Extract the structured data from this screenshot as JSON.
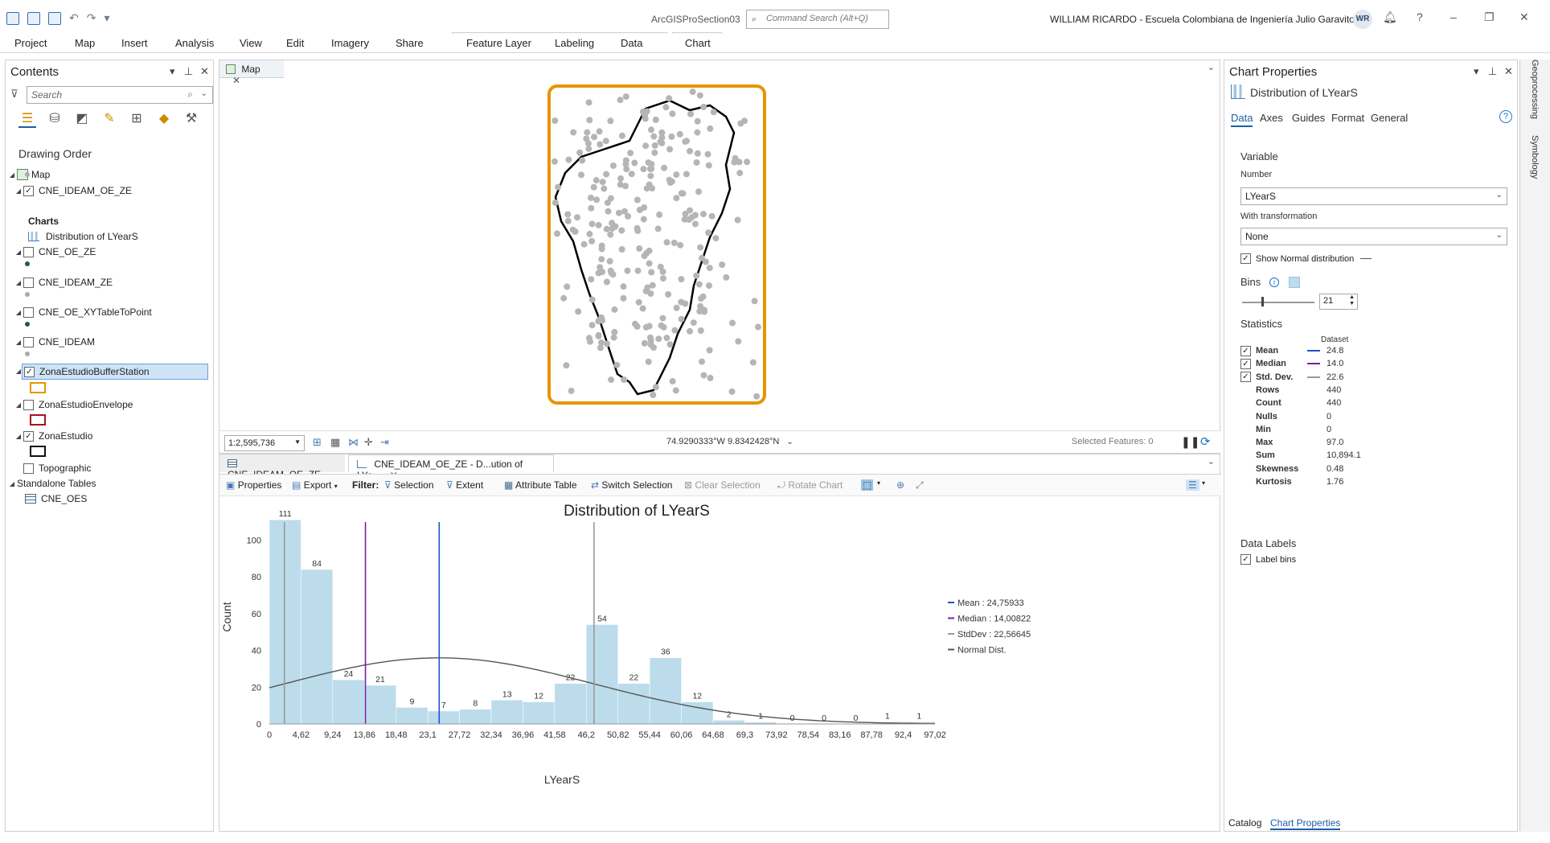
{
  "titlebar": {
    "project_name": "ArcGISProSection03",
    "command_search_placeholder": "Command Search (Alt+Q)",
    "user_name": "WILLIAM RICARDO  - Escuela Colombiana de Ingeniería Julio Garavito",
    "avatar_initials": "WR",
    "help_label": "?"
  },
  "ribbon": {
    "tabs": [
      "Project",
      "Map",
      "Insert",
      "Analysis",
      "View",
      "Edit",
      "Imagery",
      "Share",
      "Feature Layer",
      "Labeling",
      "Data",
      "Chart"
    ]
  },
  "contents": {
    "title": "Contents",
    "search_placeholder": "Search",
    "drawing_order": "Drawing Order",
    "map_label": "Map",
    "layers": [
      {
        "name": "CNE_IDEAM_OE_ZE",
        "checked": true
      },
      {
        "name": "CNE_OE_ZE",
        "checked": false
      },
      {
        "name": "CNE_IDEAM_ZE",
        "checked": false
      },
      {
        "name": "CNE_OE_XYTableToPoint",
        "checked": false
      },
      {
        "name": "CNE_IDEAM",
        "checked": false
      },
      {
        "name": "ZonaEstudioBufferStation",
        "checked": true
      },
      {
        "name": "ZonaEstudioEnvelope",
        "checked": false
      },
      {
        "name": "ZonaEstudio",
        "checked": true
      },
      {
        "name": "Topographic",
        "checked": false
      }
    ],
    "charts_header": "Charts",
    "chart_item": "Distribution of LYearS",
    "standalone_header": "Standalone Tables",
    "standalone_item": "CNE_OES",
    "check_mark": "✓"
  },
  "map_view": {
    "tab_label": "Map",
    "scale": "1:2,595,736",
    "coordinates": "74.9290333°W 9.8342428°N",
    "selected_features": "Selected Features: 0"
  },
  "chart_view": {
    "tabs": [
      "CNE_IDEAM_OE_ZE",
      "CNE_IDEAM_OE_ZE - D...ution of LYe..."
    ],
    "toolbar": {
      "properties": "Properties",
      "export": "Export",
      "filter": "Filter:",
      "selection": "Selection",
      "extent": "Extent",
      "attribute_table": "Attribute Table",
      "switch_selection": "Switch Selection",
      "clear_selection": "Clear Selection",
      "rotate_chart": "Rotate Chart"
    }
  },
  "chart_data": {
    "type": "bar",
    "title": "Distribution of LYearS",
    "xlabel": "LYearS",
    "ylabel": "Count",
    "bin_edges": [
      0,
      4.62,
      9.24,
      13.86,
      18.48,
      23.1,
      27.72,
      32.34,
      36.96,
      41.58,
      46.2,
      50.82,
      55.44,
      60.06,
      64.68,
      69.3,
      73.92,
      78.54,
      83.16,
      87.78,
      92.4,
      97.02
    ],
    "x_tick_labels": [
      "0",
      "4,62",
      "9,24",
      "13,86",
      "18,48",
      "23,1",
      "27,72",
      "32,34",
      "36,96",
      "41,58",
      "46,2",
      "50,82",
      "55,44",
      "60,06",
      "64,68",
      "69,3",
      "73,92",
      "78,54",
      "83,16",
      "87,78",
      "92,4",
      "97,02"
    ],
    "values": [
      111,
      84,
      24,
      21,
      9,
      7,
      8,
      13,
      12,
      22,
      54,
      22,
      36,
      12,
      2,
      1,
      0,
      0,
      0,
      1,
      1
    ],
    "ylim": [
      0,
      115
    ],
    "y_ticks": [
      0,
      20,
      40,
      60,
      80,
      100
    ],
    "mean": 24.75933,
    "median": 14.00822,
    "stddev": 22.56645,
    "legend": [
      {
        "label": "Mean : 24,75933",
        "color": "#1f4fd6"
      },
      {
        "label": "Median : 14,00822",
        "color": "#7a1fa2"
      },
      {
        "label": "StdDev : 22,56645",
        "color": "#999999"
      },
      {
        "label": "Normal Dist.",
        "color": "#555555"
      }
    ],
    "bar_color": "#bcdcec",
    "grid": false,
    "legend_position": "right"
  },
  "chart_properties": {
    "title": "Chart Properties",
    "chart_name": "Distribution of LYearS",
    "tabs": [
      "Data",
      "Axes",
      "Guides",
      "Format",
      "General"
    ],
    "variable_header": "Variable",
    "number_label": "Number",
    "number_value": "LYearS",
    "transformation_label": "With transformation",
    "transformation_value": "None",
    "show_normal": "Show Normal distribution",
    "bins_label": "Bins",
    "bins_value": "21",
    "statistics_header": "Statistics",
    "dataset_label": "Dataset",
    "stats": [
      {
        "name": "Mean",
        "value": "24.8",
        "checkbox": true,
        "color": "#1f4fd6"
      },
      {
        "name": "Median",
        "value": "14.0",
        "checkbox": true,
        "color": "#7a1fa2"
      },
      {
        "name": "Std. Dev.",
        "value": "22.6",
        "checkbox": true,
        "color": "#999999"
      },
      {
        "name": "Rows",
        "value": "440"
      },
      {
        "name": "Count",
        "value": "440"
      },
      {
        "name": "Nulls",
        "value": "0"
      },
      {
        "name": "Min",
        "value": "0"
      },
      {
        "name": "Max",
        "value": "97.0"
      },
      {
        "name": "Sum",
        "value": "10,894.1"
      },
      {
        "name": "Skewness",
        "value": "0.48"
      },
      {
        "name": "Kurtosis",
        "value": "1.76"
      }
    ],
    "data_labels_header": "Data Labels",
    "label_bins": "Label bins",
    "bottom_tabs": [
      "Catalog",
      "Chart Properties"
    ],
    "side_tabs": [
      "Geoprocessing",
      "Symbology"
    ]
  }
}
